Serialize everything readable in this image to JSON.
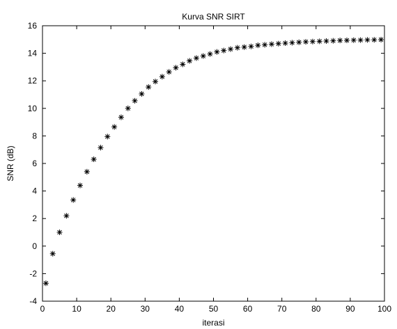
{
  "chart_data": {
    "type": "scatter",
    "title": "Kurva SNR SIRT",
    "xlabel": "iterasi",
    "ylabel": "SNR (dB)",
    "xlim": [
      0,
      100
    ],
    "ylim": [
      -4,
      16
    ],
    "xticks": [
      0,
      10,
      20,
      30,
      40,
      50,
      60,
      70,
      80,
      90,
      100
    ],
    "yticks": [
      -4,
      -2,
      0,
      2,
      4,
      6,
      8,
      10,
      12,
      14,
      16
    ],
    "grid": false,
    "legend": false,
    "marker": "asterisk",
    "marker_color": "#000000",
    "series": [
      {
        "x": [
          1,
          3,
          5,
          7,
          9,
          11,
          13,
          15,
          17,
          19,
          21,
          23,
          25,
          27,
          29,
          31,
          33,
          35,
          37,
          39,
          41,
          43,
          45,
          47,
          49,
          51,
          53,
          55,
          57,
          59,
          61,
          63,
          65,
          67,
          69,
          71,
          73,
          75,
          77,
          79,
          81,
          83,
          85,
          87,
          89,
          91,
          93,
          95,
          97,
          99
        ],
        "y": [
          -2.7,
          -0.55,
          1.0,
          2.2,
          3.35,
          4.4,
          5.4,
          6.3,
          7.15,
          7.95,
          8.65,
          9.35,
          10.0,
          10.55,
          11.05,
          11.55,
          11.95,
          12.3,
          12.65,
          12.95,
          13.2,
          13.45,
          13.65,
          13.8,
          13.95,
          14.1,
          14.2,
          14.3,
          14.4,
          14.45,
          14.5,
          14.58,
          14.62,
          14.66,
          14.7,
          14.74,
          14.77,
          14.8,
          14.83,
          14.85,
          14.87,
          14.89,
          14.91,
          14.93,
          14.94,
          14.95,
          14.96,
          14.97,
          14.98,
          14.99
        ]
      }
    ]
  }
}
